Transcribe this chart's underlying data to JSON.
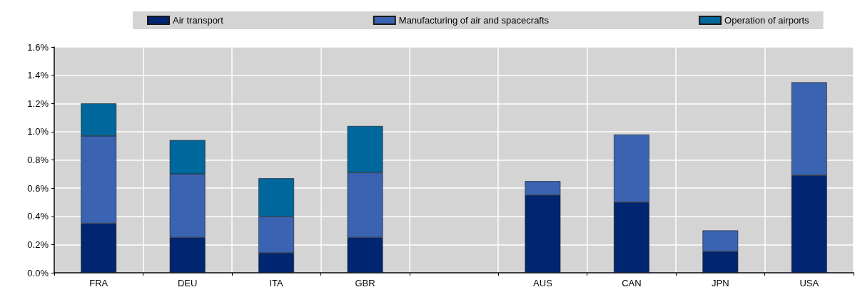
{
  "chart_data": {
    "type": "bar",
    "stacked": true,
    "categories": [
      "FRA",
      "DEU",
      "ITA",
      "GBR",
      null,
      "AUS",
      "CAN",
      "JPN",
      "USA"
    ],
    "series": [
      {
        "name": "Air transport",
        "color": "#002672",
        "values": [
          0.35,
          0.25,
          0.14,
          0.25,
          null,
          0.55,
          0.5,
          0.15,
          0.69
        ]
      },
      {
        "name": "Manufacturing of air and spacecrafts",
        "color": "#3a64b1",
        "values": [
          0.62,
          0.45,
          0.26,
          0.46,
          null,
          0.1,
          0.48,
          0.15,
          0.66
        ]
      },
      {
        "name": "Operation of airports",
        "color": "#00679c",
        "values": [
          0.23,
          0.24,
          0.27,
          0.33,
          null,
          null,
          null,
          null,
          null
        ]
      }
    ],
    "ylim": [
      0,
      1.6
    ],
    "yticks": [
      {
        "value": 0,
        "label": "0.0%"
      },
      {
        "value": 0.2,
        "label": "0.2%"
      },
      {
        "value": 0.4,
        "label": "0.4%"
      },
      {
        "value": 0.6,
        "label": "0.6%"
      },
      {
        "value": 0.8,
        "label": "0.8%"
      },
      {
        "value": 1.0,
        "label": "1.0%"
      },
      {
        "value": 1.2,
        "label": "1.2%"
      },
      {
        "value": 1.4,
        "label": "1.4%"
      },
      {
        "value": 1.6,
        "label": "1.6%"
      }
    ],
    "grid": true,
    "legend": "top"
  }
}
